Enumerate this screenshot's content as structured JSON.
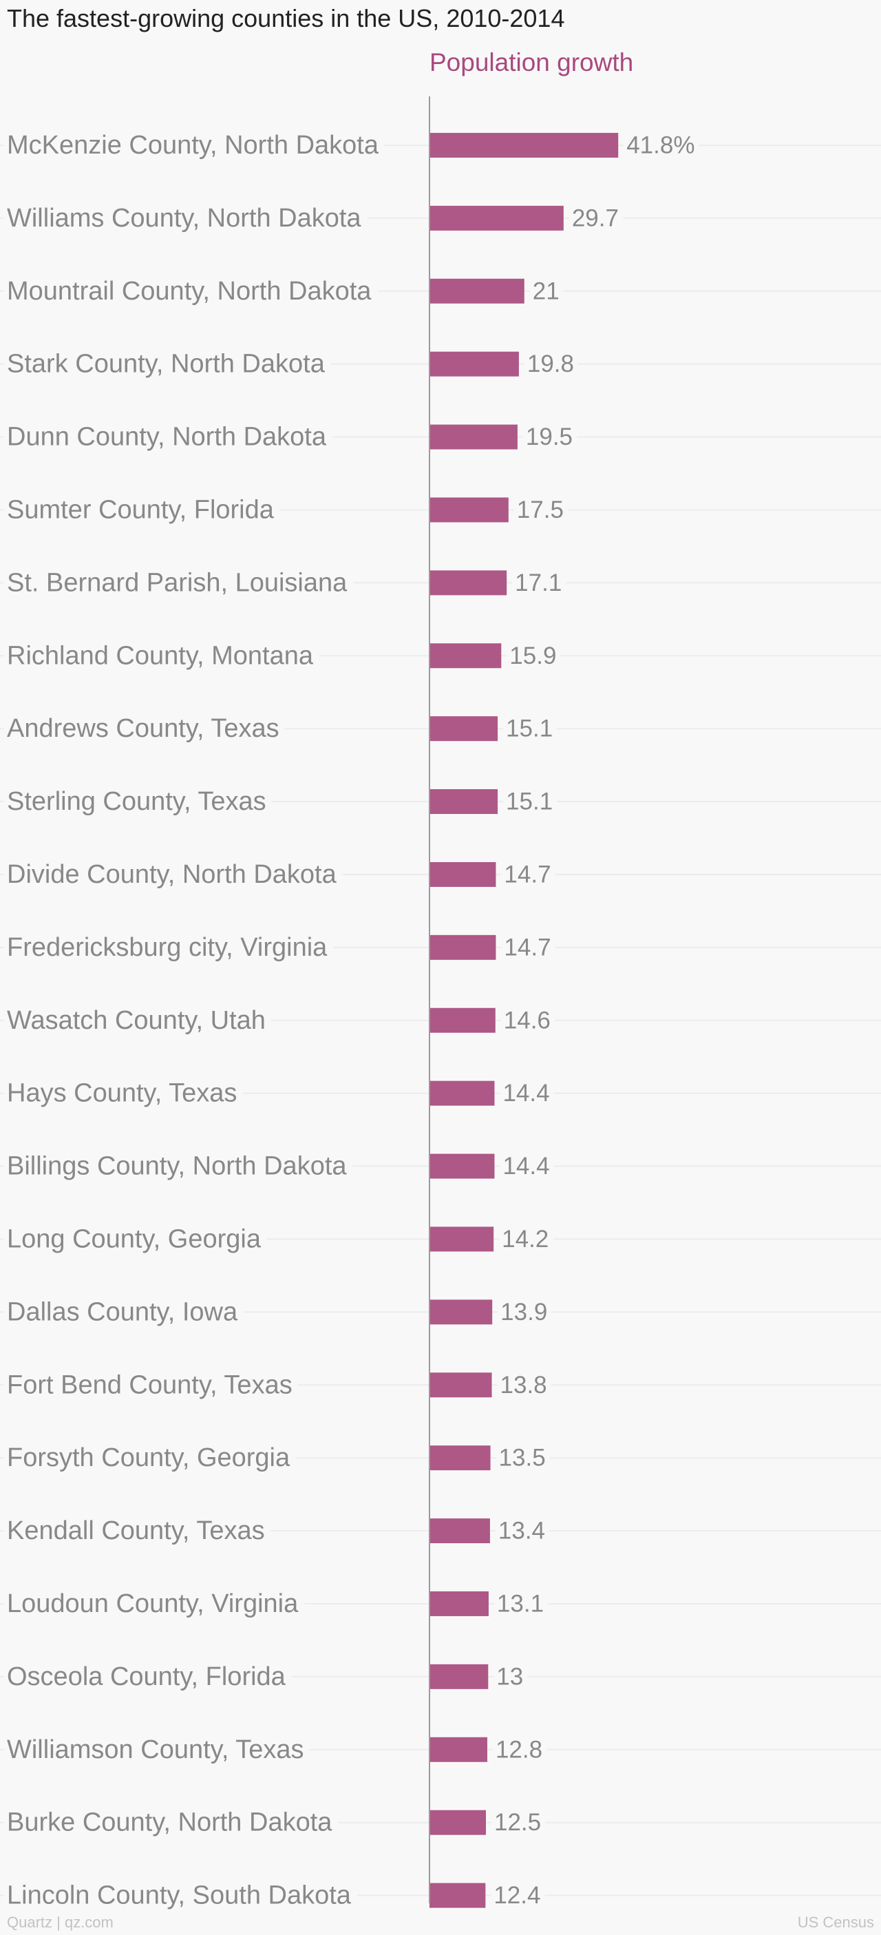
{
  "chart_data": {
    "type": "bar",
    "orientation": "horizontal",
    "title": "The fastest-growing counties in the US, 2010-2014",
    "series": [
      {
        "name": "Population growth",
        "values": [
          41.8,
          29.7,
          21,
          19.8,
          19.5,
          17.5,
          17.1,
          15.9,
          15.1,
          15.1,
          14.7,
          14.7,
          14.6,
          14.4,
          14.4,
          14.2,
          13.9,
          13.8,
          13.5,
          13.4,
          13.1,
          13,
          12.8,
          12.5,
          12.4
        ],
        "value_labels": [
          "41.8%",
          "29.7",
          "21",
          "19.8",
          "19.5",
          "17.5",
          "17.1",
          "15.9",
          "15.1",
          "15.1",
          "14.7",
          "14.7",
          "14.6",
          "14.4",
          "14.4",
          "14.2",
          "13.9",
          "13.8",
          "13.5",
          "13.4",
          "13.1",
          "13",
          "12.8",
          "12.5",
          "12.4"
        ]
      }
    ],
    "categories": [
      "McKenzie County, North Dakota",
      "Williams County, North Dakota",
      "Mountrail County, North Dakota",
      "Stark County, North Dakota",
      "Dunn County, North Dakota",
      "Sumter County, Florida",
      "St. Bernard Parish, Louisiana",
      "Richland County, Montana",
      "Andrews County, Texas",
      "Sterling County, Texas",
      "Divide County, North Dakota",
      "Fredericksburg city, Virginia",
      "Wasatch County, Utah",
      "Hays County, Texas",
      "Billings County, North Dakota",
      "Long County, Georgia",
      "Dallas County, Iowa",
      "Fort Bend County, Texas",
      "Forsyth County, Georgia",
      "Kendall County, Texas",
      "Loudoun County, Virginia",
      "Osceola County, Florida",
      "Williamson County, Texas",
      "Burke County, North Dakota",
      "Lincoln County, South Dakota"
    ],
    "xlim": [
      0,
      100
    ],
    "unit": "%",
    "grid": true,
    "legend": "none"
  },
  "footer": {
    "source_left": "Quartz | qz.com",
    "source_right": "US Census"
  },
  "colors": {
    "bar": "#ad5887",
    "series_label": "#a8497f",
    "axis": "#9a9a9a",
    "grid": "#ececec",
    "text": "#888888",
    "title": "#222222",
    "background": "#f9f8f8"
  }
}
